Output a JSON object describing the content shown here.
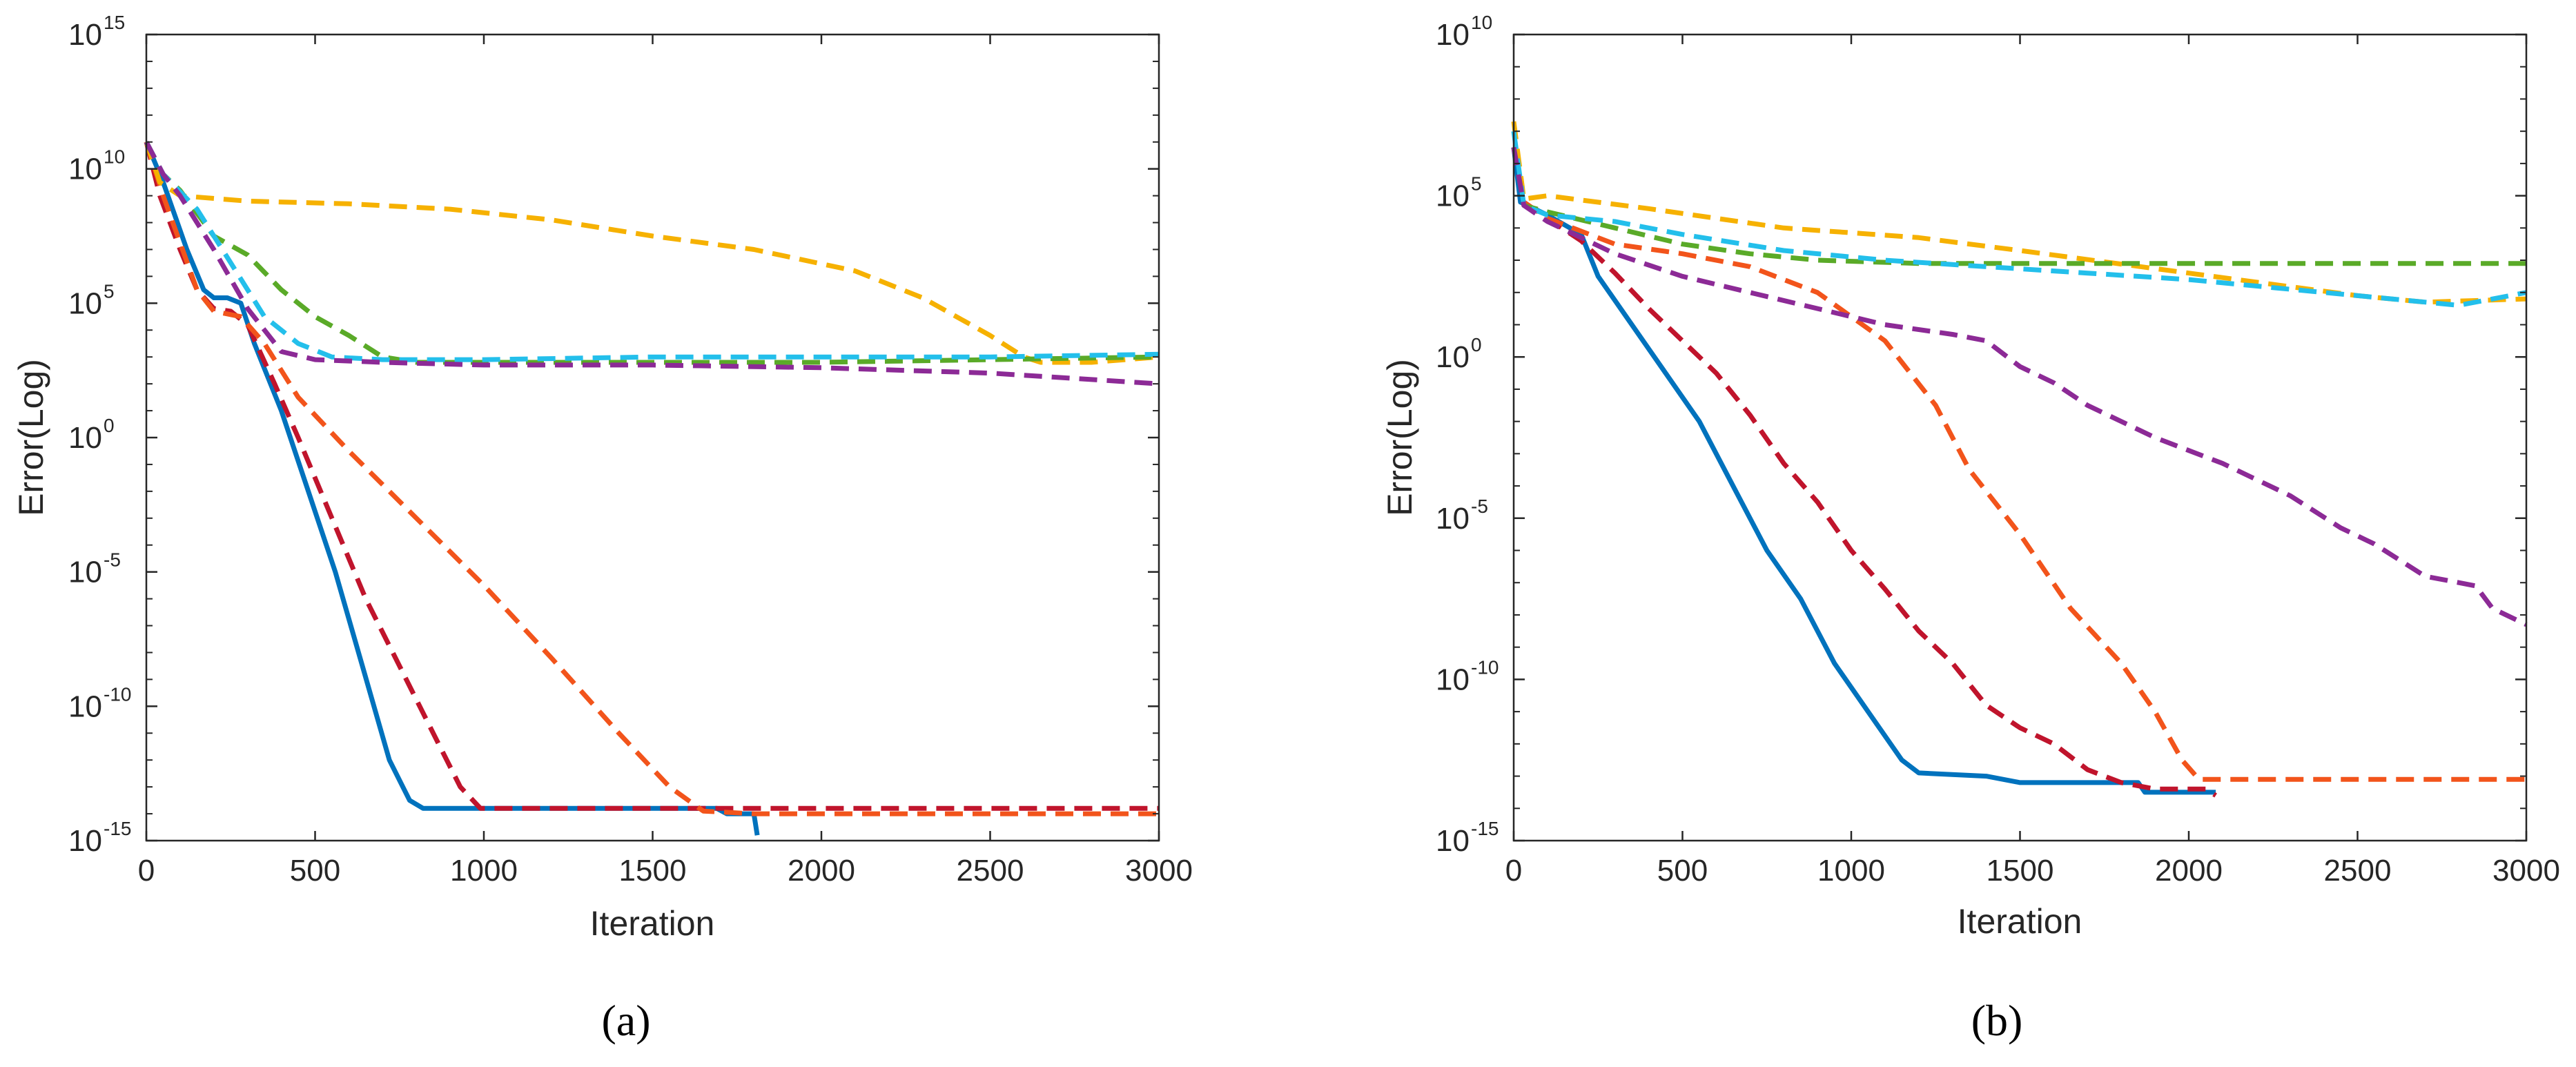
{
  "figure": {
    "panel_labels": [
      "(a)",
      "(b)"
    ]
  },
  "chart_data": [
    {
      "panel": "(a)",
      "type": "line",
      "title": "",
      "xlabel": "Iteration",
      "ylabel": "Error(Log)",
      "xlim": [
        0,
        3000
      ],
      "ylim_log10": [
        -15,
        15
      ],
      "xticks": [
        "0",
        "500",
        "1000",
        "1500",
        "2000",
        "2500",
        "3000"
      ],
      "ytick_exponents": [
        "-15",
        "-10",
        "-5",
        "0",
        "5",
        "10",
        "15"
      ],
      "grid": false,
      "series": [
        {
          "name": "blue",
          "color": "#0072BD",
          "style": "solid",
          "points": [
            [
              0,
              11
            ],
            [
              50,
              9.5
            ],
            [
              120,
              7
            ],
            [
              170,
              5.5
            ],
            [
              200,
              5.2
            ],
            [
              240,
              5.2
            ],
            [
              280,
              5
            ],
            [
              320,
              3.5
            ],
            [
              400,
              1
            ],
            [
              480,
              -2
            ],
            [
              560,
              -5
            ],
            [
              640,
              -8.5
            ],
            [
              720,
              -12
            ],
            [
              780,
              -13.5
            ],
            [
              820,
              -13.8
            ],
            [
              1000,
              -13.8
            ],
            [
              1500,
              -13.8
            ],
            [
              1690,
              -13.8
            ],
            [
              1720,
              -14
            ],
            [
              1800,
              -14
            ],
            [
              1810,
              -14.8
            ]
          ]
        },
        {
          "name": "red",
          "color": "#C0142C",
          "style": "dashed",
          "points": [
            [
              0,
              11
            ],
            [
              40,
              9
            ],
            [
              100,
              7
            ],
            [
              150,
              5.5
            ],
            [
              200,
              4.8
            ],
            [
              250,
              4.7
            ],
            [
              300,
              4.2
            ],
            [
              380,
              2
            ],
            [
              450,
              0
            ],
            [
              550,
              -3
            ],
            [
              650,
              -6
            ],
            [
              750,
              -8.5
            ],
            [
              850,
              -11
            ],
            [
              930,
              -13
            ],
            [
              990,
              -13.8
            ],
            [
              1200,
              -13.8
            ],
            [
              1600,
              -13.8
            ],
            [
              2000,
              -13.8
            ],
            [
              3000,
              -13.8
            ]
          ]
        },
        {
          "name": "orange-red",
          "color": "#F2541B",
          "style": "dashed",
          "points": [
            [
              0,
              11
            ],
            [
              50,
              9
            ],
            [
              150,
              5.5
            ],
            [
              200,
              4.7
            ],
            [
              280,
              4.5
            ],
            [
              350,
              3.5
            ],
            [
              450,
              1.5
            ],
            [
              600,
              -0.5
            ],
            [
              800,
              -3
            ],
            [
              1000,
              -5.5
            ],
            [
              1200,
              -8.2
            ],
            [
              1400,
              -11
            ],
            [
              1550,
              -13
            ],
            [
              1650,
              -13.9
            ],
            [
              1800,
              -14
            ],
            [
              2200,
              -14
            ],
            [
              3000,
              -14
            ]
          ]
        },
        {
          "name": "yellow",
          "color": "#F6B100",
          "style": "dashed",
          "points": [
            [
              0,
              11
            ],
            [
              40,
              9.5
            ],
            [
              100,
              9
            ],
            [
              300,
              8.8
            ],
            [
              600,
              8.7
            ],
            [
              900,
              8.5
            ],
            [
              1200,
              8.1
            ],
            [
              1500,
              7.5
            ],
            [
              1800,
              7
            ],
            [
              2100,
              6.2
            ],
            [
              2300,
              5.2
            ],
            [
              2500,
              3.8
            ],
            [
              2600,
              3
            ],
            [
              2650,
              2.8
            ],
            [
              2800,
              2.8
            ],
            [
              3000,
              3
            ]
          ]
        },
        {
          "name": "green",
          "color": "#5AAA28",
          "style": "dashed",
          "points": [
            [
              0,
              11
            ],
            [
              50,
              9.8
            ],
            [
              100,
              9.2
            ],
            [
              200,
              7.5
            ],
            [
              300,
              6.8
            ],
            [
              400,
              5.5
            ],
            [
              500,
              4.5
            ],
            [
              600,
              3.8
            ],
            [
              700,
              3
            ],
            [
              800,
              2.8
            ],
            [
              1200,
              2.8
            ],
            [
              1600,
              2.8
            ],
            [
              2000,
              2.8
            ],
            [
              2500,
              2.9
            ],
            [
              3000,
              3
            ]
          ]
        },
        {
          "name": "cyan",
          "color": "#23BFEB",
          "style": "dashed",
          "points": [
            [
              0,
              11
            ],
            [
              50,
              9.8
            ],
            [
              150,
              8.5
            ],
            [
              250,
              6.5
            ],
            [
              350,
              4.5
            ],
            [
              450,
              3.5
            ],
            [
              550,
              3
            ],
            [
              700,
              2.9
            ],
            [
              1000,
              2.9
            ],
            [
              1500,
              3
            ],
            [
              2000,
              3
            ],
            [
              2500,
              3
            ],
            [
              3000,
              3.1
            ]
          ]
        },
        {
          "name": "purple",
          "color": "#8C2A96",
          "style": "dashed",
          "points": [
            [
              0,
              11
            ],
            [
              50,
              9.8
            ],
            [
              100,
              9
            ],
            [
              200,
              7
            ],
            [
              300,
              4.8
            ],
            [
              400,
              3.2
            ],
            [
              500,
              2.9
            ],
            [
              700,
              2.8
            ],
            [
              1000,
              2.7
            ],
            [
              1500,
              2.7
            ],
            [
              2000,
              2.6
            ],
            [
              2500,
              2.4
            ],
            [
              3000,
              2
            ]
          ]
        }
      ]
    },
    {
      "panel": "(b)",
      "type": "line",
      "title": "",
      "xlabel": "Iteration",
      "ylabel": "Error(Log)",
      "xlim": [
        0,
        3000
      ],
      "ylim_log10": [
        -15,
        10
      ],
      "xticks": [
        "0",
        "500",
        "1000",
        "1500",
        "2000",
        "2500",
        "3000"
      ],
      "ytick_exponents": [
        "-15",
        "-10",
        "-5",
        "0",
        "5",
        "10"
      ],
      "grid": false,
      "series": [
        {
          "name": "blue",
          "color": "#0072BD",
          "style": "solid",
          "points": [
            [
              0,
              6.5
            ],
            [
              20,
              4.8
            ],
            [
              100,
              4.4
            ],
            [
              200,
              3.8
            ],
            [
              250,
              2.5
            ],
            [
              350,
              1
            ],
            [
              450,
              -0.5
            ],
            [
              550,
              -2
            ],
            [
              650,
              -4
            ],
            [
              750,
              -6
            ],
            [
              850,
              -7.5
            ],
            [
              950,
              -9.5
            ],
            [
              1050,
              -11
            ],
            [
              1150,
              -12.5
            ],
            [
              1200,
              -12.9
            ],
            [
              1400,
              -13
            ],
            [
              1500,
              -13.2
            ],
            [
              1850,
              -13.2
            ],
            [
              1870,
              -13.5
            ],
            [
              2080,
              -13.5
            ]
          ]
        },
        {
          "name": "red",
          "color": "#C0142C",
          "style": "dashed",
          "points": [
            [
              0,
              6.5
            ],
            [
              30,
              4.8
            ],
            [
              100,
              4.3
            ],
            [
              200,
              3.6
            ],
            [
              300,
              2.6
            ],
            [
              400,
              1.5
            ],
            [
              500,
              0.5
            ],
            [
              600,
              -0.5
            ],
            [
              700,
              -1.8
            ],
            [
              800,
              -3.3
            ],
            [
              900,
              -4.5
            ],
            [
              1000,
              -6
            ],
            [
              1100,
              -7.2
            ],
            [
              1200,
              -8.5
            ],
            [
              1300,
              -9.5
            ],
            [
              1400,
              -10.8
            ],
            [
              1500,
              -11.5
            ],
            [
              1600,
              -12
            ],
            [
              1700,
              -12.8
            ],
            [
              1800,
              -13.2
            ],
            [
              1900,
              -13.4
            ],
            [
              2050,
              -13.4
            ],
            [
              2080,
              -13.6
            ]
          ]
        },
        {
          "name": "orange-red",
          "color": "#F2541B",
          "style": "dashed",
          "points": [
            [
              0,
              6.5
            ],
            [
              30,
              4.8
            ],
            [
              100,
              4.3
            ],
            [
              300,
              3.5
            ],
            [
              500,
              3.2
            ],
            [
              700,
              2.8
            ],
            [
              900,
              2
            ],
            [
              1100,
              0.5
            ],
            [
              1250,
              -1.5
            ],
            [
              1350,
              -3.5
            ],
            [
              1500,
              -5.5
            ],
            [
              1650,
              -7.8
            ],
            [
              1800,
              -9.5
            ],
            [
              1900,
              -11
            ],
            [
              1980,
              -12.5
            ],
            [
              2030,
              -13.1
            ],
            [
              2100,
              -13.1
            ],
            [
              2500,
              -13.1
            ],
            [
              3000,
              -13.1
            ]
          ]
        },
        {
          "name": "yellow",
          "color": "#F6B100",
          "style": "dashed",
          "points": [
            [
              0,
              7.3
            ],
            [
              30,
              4.9
            ],
            [
              100,
              5
            ],
            [
              400,
              4.6
            ],
            [
              800,
              4
            ],
            [
              1200,
              3.7
            ],
            [
              1500,
              3.3
            ],
            [
              2000,
              2.6
            ],
            [
              2500,
              1.9
            ],
            [
              2700,
              1.7
            ],
            [
              3000,
              1.8
            ]
          ]
        },
        {
          "name": "green",
          "color": "#5AAA28",
          "style": "dashed",
          "points": [
            [
              0,
              6.5
            ],
            [
              30,
              4.7
            ],
            [
              100,
              4.5
            ],
            [
              300,
              4
            ],
            [
              500,
              3.5
            ],
            [
              700,
              3.2
            ],
            [
              900,
              3
            ],
            [
              1200,
              2.9
            ],
            [
              1500,
              2.9
            ],
            [
              2000,
              2.9
            ],
            [
              2500,
              2.9
            ],
            [
              3000,
              2.9
            ]
          ]
        },
        {
          "name": "cyan",
          "color": "#23BFEB",
          "style": "dashed",
          "points": [
            [
              0,
              7
            ],
            [
              30,
              4.7
            ],
            [
              100,
              4.4
            ],
            [
              300,
              4.2
            ],
            [
              500,
              3.8
            ],
            [
              800,
              3.3
            ],
            [
              1100,
              3
            ],
            [
              1400,
              2.8
            ],
            [
              1700,
              2.6
            ],
            [
              2000,
              2.4
            ],
            [
              2500,
              1.9
            ],
            [
              2800,
              1.6
            ],
            [
              3000,
              2
            ]
          ]
        },
        {
          "name": "purple",
          "color": "#8C2A96",
          "style": "dashed",
          "points": [
            [
              0,
              6.5
            ],
            [
              30,
              4.7
            ],
            [
              100,
              4.2
            ],
            [
              300,
              3.2
            ],
            [
              500,
              2.5
            ],
            [
              700,
              2
            ],
            [
              900,
              1.5
            ],
            [
              1100,
              1
            ],
            [
              1300,
              0.7
            ],
            [
              1400,
              0.5
            ],
            [
              1500,
              -0.3
            ],
            [
              1600,
              -0.8
            ],
            [
              1700,
              -1.5
            ],
            [
              1900,
              -2.5
            ],
            [
              2100,
              -3.3
            ],
            [
              2300,
              -4.3
            ],
            [
              2450,
              -5.3
            ],
            [
              2550,
              -5.8
            ],
            [
              2700,
              -6.8
            ],
            [
              2800,
              -7
            ],
            [
              2850,
              -7.1
            ],
            [
              2900,
              -7.8
            ],
            [
              3000,
              -8.3
            ]
          ]
        }
      ]
    }
  ]
}
